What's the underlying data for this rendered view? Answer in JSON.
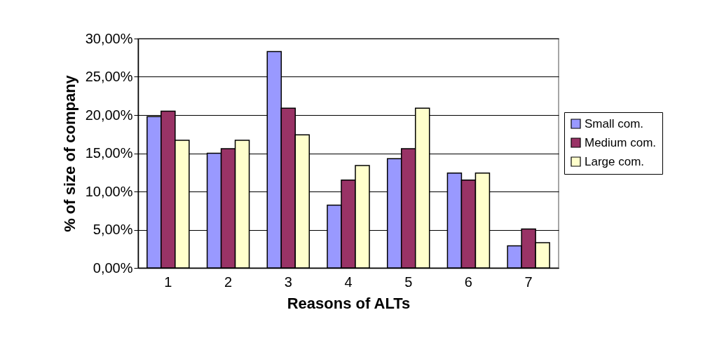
{
  "chart_data": {
    "type": "bar",
    "xlabel": "Reasons of ALTs",
    "ylabel": "% of size of company",
    "categories": [
      "1",
      "2",
      "3",
      "4",
      "5",
      "6",
      "7"
    ],
    "series": [
      {
        "name": "Small com.",
        "color": "#9999ff",
        "values": [
          19.8,
          15.0,
          28.3,
          8.2,
          14.3,
          12.4,
          2.9
        ]
      },
      {
        "name": "Medium com.",
        "color": "#993366",
        "values": [
          20.5,
          15.6,
          20.9,
          11.5,
          15.6,
          11.5,
          5.1
        ]
      },
      {
        "name": "Large com.",
        "color": "#ffffcc",
        "values": [
          16.7,
          16.7,
          17.4,
          13.4,
          20.9,
          12.4,
          3.3
        ]
      }
    ],
    "ylim": [
      0,
      30
    ],
    "yticks": [
      {
        "value": 0,
        "label": "0,00%"
      },
      {
        "value": 5,
        "label": "5,00%"
      },
      {
        "value": 10,
        "label": "10,00%"
      },
      {
        "value": 15,
        "label": "15,00%"
      },
      {
        "value": 20,
        "label": "20,00%"
      },
      {
        "value": 25,
        "label": "25,00%"
      },
      {
        "value": 30,
        "label": "30,00%"
      }
    ],
    "grid": "y",
    "legend": "right"
  }
}
